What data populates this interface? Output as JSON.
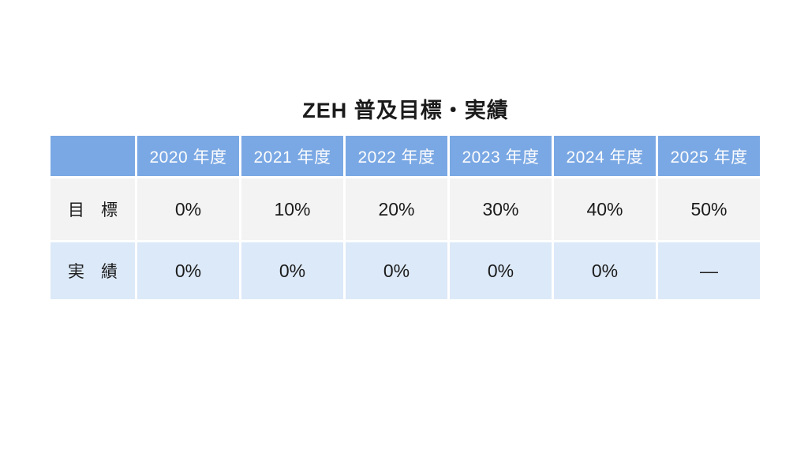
{
  "chart_data": {
    "type": "table",
    "title": "ZEH 普及目標・実績",
    "columns": [
      "",
      "2020 年度",
      "2021 年度",
      "2022 年度",
      "2023 年度",
      "2024 年度",
      "2025 年度"
    ],
    "rows": [
      [
        "目　標",
        "0%",
        "10%",
        "20%",
        "30%",
        "40%",
        "50%"
      ],
      [
        "実　績",
        "0%",
        "0%",
        "0%",
        "0%",
        "0%",
        "—"
      ]
    ],
    "row_meanings": [
      "target",
      "actual"
    ],
    "layout": {
      "grid": "off",
      "header_position": "top",
      "row_label_position": "left"
    }
  },
  "colors": {
    "header_bg": "#7aa8e4",
    "header_text": "#fdfdfd",
    "target_row_bg": "#f3f3f3",
    "actual_row_bg": "#dce9f8",
    "body_text": "#1b1b1b",
    "page_bg": "#ffffff"
  }
}
